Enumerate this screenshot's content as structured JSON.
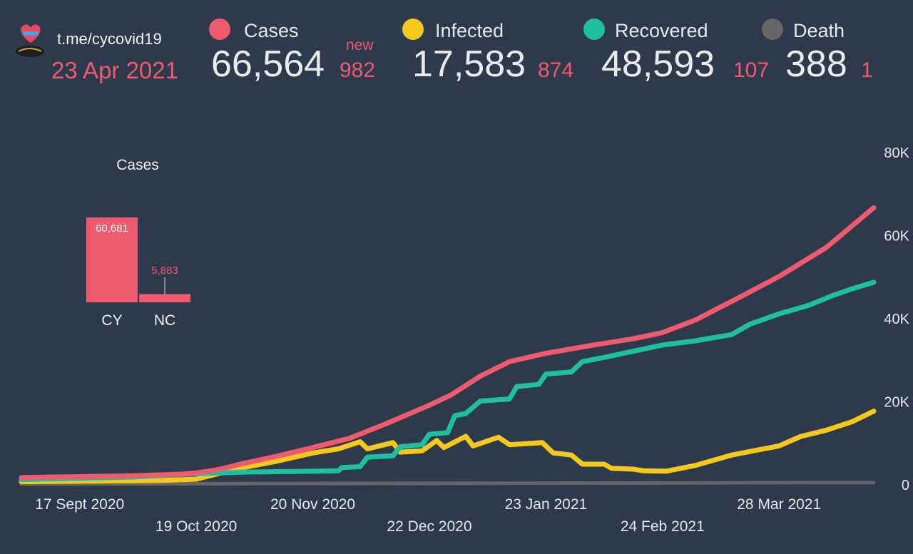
{
  "header": {
    "channel": "t.me/cycovid19",
    "date": "23 Apr 2021",
    "new_label": "new"
  },
  "stats": [
    {
      "label": "Cases",
      "total": "66,564",
      "new": "982",
      "color": "#ef5a6f"
    },
    {
      "label": "Infected",
      "total": "17,583",
      "new": "874",
      "color": "#f4c81f"
    },
    {
      "label": "Recovered",
      "total": "48,593",
      "new": "107",
      "color": "#1ec0a0"
    },
    {
      "label": "Death",
      "total": "388",
      "new": "1",
      "color": "#666666"
    }
  ],
  "chart_data": [
    {
      "type": "bar",
      "title": "Cases",
      "categories": [
        "CY",
        "NC"
      ],
      "values": [
        60681,
        5883
      ],
      "value_labels": [
        "60,681",
        "5,883"
      ],
      "color": "#ef5a6f"
    },
    {
      "type": "line",
      "x_start": "2020-09-01",
      "x_end": "2021-04-23",
      "x_ticks": [
        {
          "date": "2020-09-17",
          "label": "17 Sept 2020",
          "row": 0
        },
        {
          "date": "2020-10-19",
          "label": "19 Oct 2020",
          "row": 1
        },
        {
          "date": "2020-11-20",
          "label": "20 Nov 2020",
          "row": 0
        },
        {
          "date": "2020-12-22",
          "label": "22 Dec 2020",
          "row": 1
        },
        {
          "date": "2021-01-23",
          "label": "23 Jan 2021",
          "row": 0
        },
        {
          "date": "2021-02-24",
          "label": "24 Feb 2021",
          "row": 1
        },
        {
          "date": "2021-03-28",
          "label": "28 Mar 2021",
          "row": 0
        }
      ],
      "y_ticks": [
        {
          "value": 0,
          "label": "0"
        },
        {
          "value": 20000,
          "label": "20K"
        },
        {
          "value": 40000,
          "label": "40K"
        },
        {
          "value": 60000,
          "label": "60K"
        },
        {
          "value": 80000,
          "label": "80K"
        }
      ],
      "ylim": [
        0,
        80000
      ],
      "grid": false,
      "series": [
        {
          "name": "Cases",
          "color": "#ef5a6f",
          "points": [
            [
              "2020-09-01",
              1600
            ],
            [
              "2020-09-17",
              1800
            ],
            [
              "2020-10-01",
              2000
            ],
            [
              "2020-10-15",
              2400
            ],
            [
              "2020-10-19",
              2700
            ],
            [
              "2020-10-25",
              3500
            ],
            [
              "2020-11-01",
              5000
            ],
            [
              "2020-11-10",
              6700
            ],
            [
              "2020-11-20",
              8800
            ],
            [
              "2020-11-30",
              11000
            ],
            [
              "2020-12-10",
              14500
            ],
            [
              "2020-12-22",
              19000
            ],
            [
              "2020-12-28",
              21500
            ],
            [
              "2021-01-05",
              26000
            ],
            [
              "2021-01-13",
              29500
            ],
            [
              "2021-01-23",
              31500
            ],
            [
              "2021-02-05",
              33500
            ],
            [
              "2021-02-16",
              35000
            ],
            [
              "2021-02-24",
              36500
            ],
            [
              "2021-03-05",
              39500
            ],
            [
              "2021-03-15",
              44000
            ],
            [
              "2021-03-28",
              50000
            ],
            [
              "2021-04-10",
              57000
            ],
            [
              "2021-04-23",
              66564
            ]
          ]
        },
        {
          "name": "Infected",
          "color": "#f4c81f",
          "points": [
            [
              "2020-09-01",
              600
            ],
            [
              "2020-09-17",
              700
            ],
            [
              "2020-10-01",
              800
            ],
            [
              "2020-10-10",
              900
            ],
            [
              "2020-10-19",
              1200
            ],
            [
              "2020-10-25",
              2500
            ],
            [
              "2020-11-01",
              4000
            ],
            [
              "2020-11-10",
              5500
            ],
            [
              "2020-11-20",
              7500
            ],
            [
              "2020-11-27",
              8500
            ],
            [
              "2020-12-03",
              10200
            ],
            [
              "2020-12-05",
              8500
            ],
            [
              "2020-12-12",
              10000
            ],
            [
              "2020-12-14",
              7700
            ],
            [
              "2020-12-20",
              8000
            ],
            [
              "2020-12-24",
              10500
            ],
            [
              "2020-12-26",
              8800
            ],
            [
              "2021-01-01",
              11500
            ],
            [
              "2021-01-03",
              9200
            ],
            [
              "2021-01-10",
              11300
            ],
            [
              "2021-01-13",
              9500
            ],
            [
              "2021-01-22",
              10000
            ],
            [
              "2021-01-25",
              7500
            ],
            [
              "2021-01-30",
              7000
            ],
            [
              "2021-02-02",
              4800
            ],
            [
              "2021-02-08",
              4800
            ],
            [
              "2021-02-10",
              3800
            ],
            [
              "2021-02-16",
              3600
            ],
            [
              "2021-02-19",
              3200
            ],
            [
              "2021-02-25",
              3100
            ],
            [
              "2021-03-05",
              4500
            ],
            [
              "2021-03-15",
              7000
            ],
            [
              "2021-03-28",
              9200
            ],
            [
              "2021-04-03",
              11500
            ],
            [
              "2021-04-10",
              13000
            ],
            [
              "2021-04-17",
              15000
            ],
            [
              "2021-04-23",
              17583
            ]
          ]
        },
        {
          "name": "Recovered",
          "color": "#1ec0a0",
          "points": [
            [
              "2020-09-01",
              1100
            ],
            [
              "2020-09-17",
              1400
            ],
            [
              "2020-10-01",
              1700
            ],
            [
              "2020-10-19",
              2500
            ],
            [
              "2020-11-01",
              2900
            ],
            [
              "2020-11-20",
              3100
            ],
            [
              "2020-11-27",
              3200
            ],
            [
              "2020-11-28",
              4000
            ],
            [
              "2020-12-03",
              4200
            ],
            [
              "2020-12-05",
              6500
            ],
            [
              "2020-12-12",
              6800
            ],
            [
              "2020-12-14",
              9000
            ],
            [
              "2020-12-20",
              9500
            ],
            [
              "2020-12-22",
              12000
            ],
            [
              "2020-12-27",
              12400
            ],
            [
              "2020-12-29",
              16500
            ],
            [
              "2021-01-01",
              17000
            ],
            [
              "2021-01-05",
              20000
            ],
            [
              "2021-01-13",
              20500
            ],
            [
              "2021-01-15",
              23500
            ],
            [
              "2021-01-21",
              24000
            ],
            [
              "2021-01-23",
              26500
            ],
            [
              "2021-01-30",
              27000
            ],
            [
              "2021-02-02",
              29500
            ],
            [
              "2021-02-08",
              30500
            ],
            [
              "2021-02-16",
              32000
            ],
            [
              "2021-02-24",
              33500
            ],
            [
              "2021-03-05",
              34500
            ],
            [
              "2021-03-15",
              36000
            ],
            [
              "2021-03-20",
              38500
            ],
            [
              "2021-03-28",
              41000
            ],
            [
              "2021-04-05",
              43000
            ],
            [
              "2021-04-12",
              45500
            ],
            [
              "2021-04-17",
              47000
            ],
            [
              "2021-04-23",
              48593
            ]
          ]
        },
        {
          "name": "Death",
          "color": "#666666",
          "points": [
            [
              "2020-09-01",
              20
            ],
            [
              "2021-04-23",
              388
            ]
          ]
        }
      ]
    }
  ]
}
